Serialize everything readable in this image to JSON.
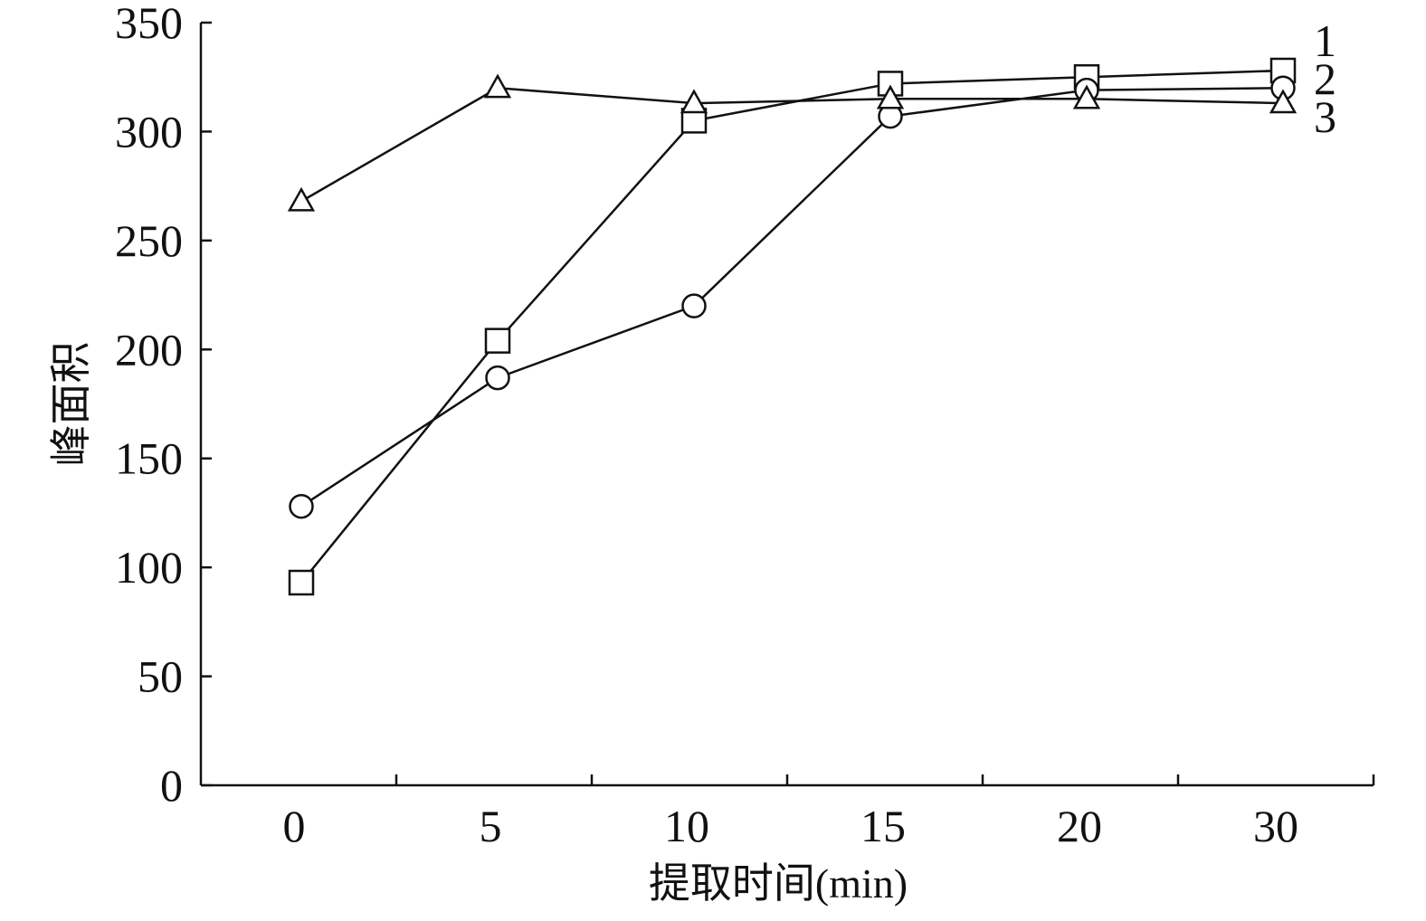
{
  "chart_data": {
    "type": "line",
    "xlabel": "提取时间(min)",
    "ylabel": "峰面积",
    "categories": [
      "0",
      "5",
      "10",
      "15",
      "20",
      "30"
    ],
    "ylim": [
      0,
      350
    ],
    "yticks": [
      0,
      50,
      100,
      150,
      200,
      250,
      300,
      350
    ],
    "grid": false,
    "legend": "line-end labels at right",
    "series": [
      {
        "name": "1",
        "marker": "square",
        "values": [
          93,
          204,
          305,
          322,
          325,
          328
        ]
      },
      {
        "name": "2",
        "marker": "circle",
        "values": [
          128,
          187,
          220,
          307,
          319,
          320
        ]
      },
      {
        "name": "3",
        "marker": "triangle",
        "values": [
          268,
          320,
          313,
          315,
          315,
          313
        ]
      }
    ]
  }
}
